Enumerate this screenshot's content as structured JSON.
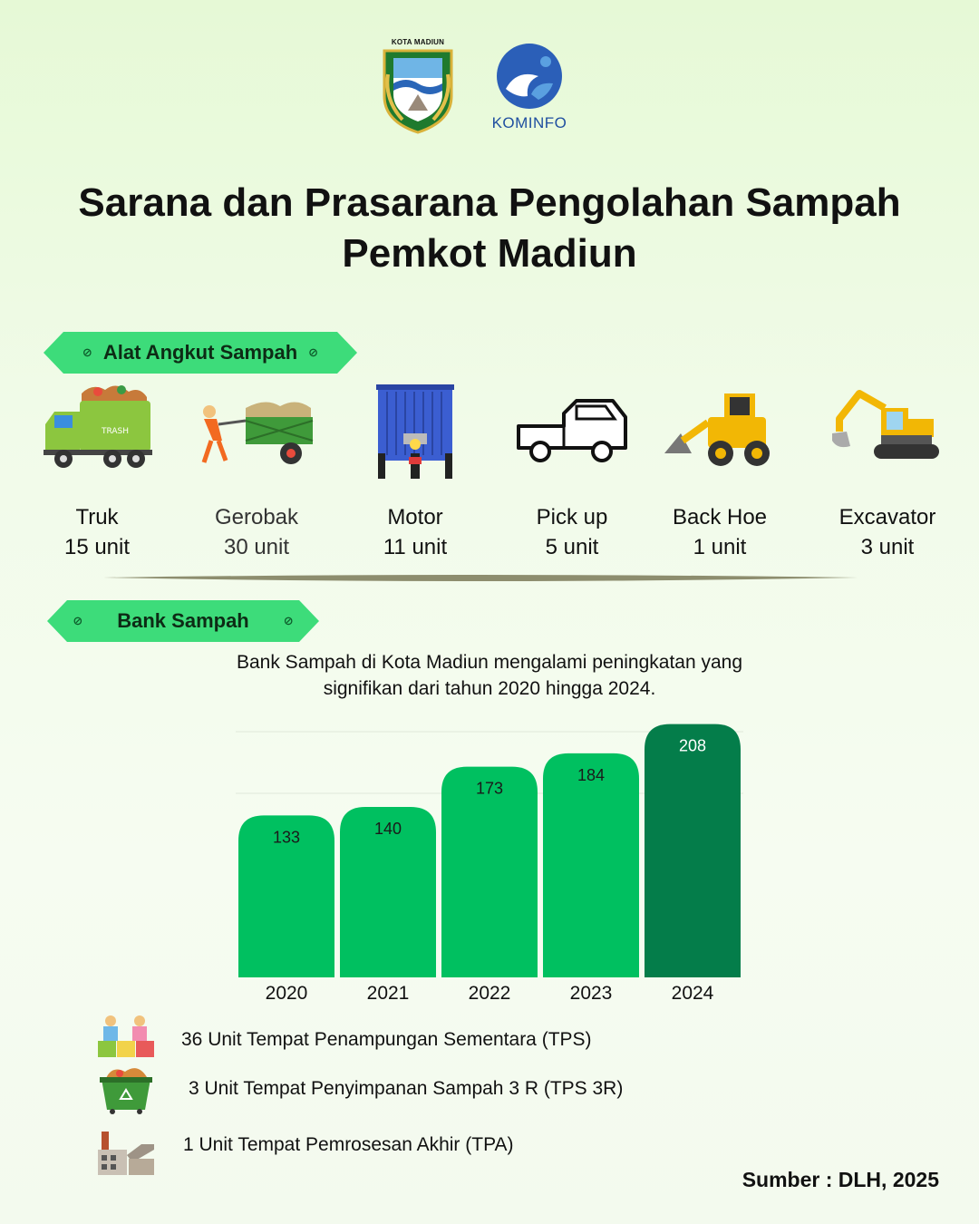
{
  "logos": {
    "city_caption": "KOTA MADIUN",
    "kominfo_label": "KOMINFO"
  },
  "title": {
    "line1": "Sarana dan Prasarana Pengolahan Sampah",
    "line2": "Pemkot Madiun"
  },
  "section_transport": {
    "label": "Alat Angkut Sampah"
  },
  "vehicles": [
    {
      "name": "Truk",
      "count": "15 unit",
      "icon": "garbage-truck-icon"
    },
    {
      "name": "Gerobak",
      "count": "30 unit",
      "icon": "cart-icon"
    },
    {
      "name": "Motor",
      "count": "11 unit",
      "icon": "motor-cargo-icon"
    },
    {
      "name": "Pick up",
      "count": "5 unit",
      "icon": "pickup-truck-icon"
    },
    {
      "name": "Back Hoe",
      "count": "1 unit",
      "icon": "backhoe-icon"
    },
    {
      "name": "Excavator",
      "count": "3 unit",
      "icon": "excavator-icon"
    }
  ],
  "section_bank": {
    "label": "Bank Sampah"
  },
  "bank_description": {
    "line1": "Bank Sampah di Kota Madiun mengalami peningkatan yang",
    "line2": "signifikan dari tahun 2020 hingga 2024."
  },
  "chart_data": {
    "type": "bar",
    "categories": [
      "2020",
      "2021",
      "2022",
      "2023",
      "2024"
    ],
    "values": [
      133,
      140,
      173,
      184,
      208
    ],
    "ylim": [
      0,
      210
    ],
    "grid": true,
    "colors": [
      "#00c060",
      "#00c060",
      "#00c060",
      "#00c060",
      "#047d4a"
    ],
    "title": "",
    "xlabel": "",
    "ylabel": ""
  },
  "facilities": [
    {
      "text": "36 Unit Tempat Penampungan Sementara (TPS)",
      "icon": "tps-icon"
    },
    {
      "text": "3 Unit Tempat Penyimpanan Sampah 3 R (TPS 3R)",
      "icon": "dumpster-icon"
    },
    {
      "text": "1 Unit Tempat Pemrosesan Akhir (TPA)",
      "icon": "factory-icon"
    }
  ],
  "source": "Sumber : DLH, 2025",
  "colors": {
    "accent": "#3ddc7a",
    "bar": "#00c060",
    "bar_highlight": "#047d4a"
  }
}
